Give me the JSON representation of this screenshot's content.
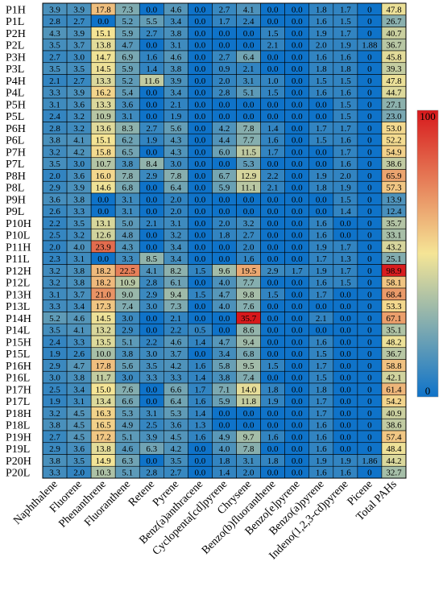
{
  "chart_data": {
    "type": "heatmap",
    "title": "",
    "xlabel": "",
    "ylabel": "",
    "columns": [
      "Naphthalene",
      "Fluorene",
      "Phenanthrene",
      "Fluoranthene",
      "Retene",
      "Pyrene",
      "Benz(a)anthracene",
      "Cyclopenta[cd]pyrene",
      "Chrysene",
      "Benzo(b)fluoranthene",
      "Benzo[e]pyrene",
      "Benzo(a)pyrene",
      "Indeno(1,2,3-cd)pyrene",
      "Picene",
      "Total PAHs"
    ],
    "rows": [
      "P1H",
      "P1L",
      "P2H",
      "P2L",
      "P3H",
      "P3L",
      "P4H",
      "P4L",
      "P5H",
      "P5L",
      "P6H",
      "P6L",
      "P7H",
      "P7L",
      "P8H",
      "P8L",
      "P9H",
      "P9L",
      "P10H",
      "P10L",
      "P11H",
      "P11L",
      "P12H",
      "P12L",
      "P13H",
      "P13L",
      "P14H",
      "P14L",
      "P15H",
      "P15L",
      "P16H",
      "P16L",
      "P17H",
      "P17L",
      "P18H",
      "P18L",
      "P19H",
      "P19L",
      "P20H",
      "P20L"
    ],
    "values": [
      [
        "3.9",
        "3.9",
        "17.8",
        "7.3",
        "0.0",
        "4.6",
        "0.0",
        "2.7",
        "4.1",
        "0.0",
        "0.0",
        "1.8",
        "1.7",
        "0",
        "47.8"
      ],
      [
        "2.8",
        "2.7",
        "0.0",
        "5.2",
        "5.5",
        "3.4",
        "0.0",
        "1.7",
        "2.4",
        "0.0",
        "0.0",
        "1.6",
        "1.5",
        "0",
        "26.7"
      ],
      [
        "4.3",
        "3.9",
        "15.1",
        "5.9",
        "2.7",
        "3.8",
        "0.0",
        "0.0",
        "0.0",
        "1.5",
        "0.0",
        "1.9",
        "1.7",
        "0",
        "40.7"
      ],
      [
        "3.5",
        "3.7",
        "13.8",
        "4.7",
        "0.0",
        "3.1",
        "0.0",
        "0.0",
        "0.0",
        "2.1",
        "0.0",
        "2.0",
        "1.9",
        "1.88",
        "36.7"
      ],
      [
        "2.7",
        "3.0",
        "14.7",
        "6.9",
        "1.6",
        "4.6",
        "0.0",
        "2.7",
        "6.4",
        "0.0",
        "0.0",
        "1.6",
        "1.6",
        "0",
        "45.8"
      ],
      [
        "3.5",
        "3.5",
        "14.5",
        "5.9",
        "1.4",
        "3.8",
        "0.0",
        "0.9",
        "2.1",
        "0.0",
        "0.0",
        "1.8",
        "1.8",
        "0",
        "39.3"
      ],
      [
        "2.1",
        "2.7",
        "13.3",
        "5.2",
        "11.6",
        "3.9",
        "0.0",
        "2.0",
        "3.1",
        "1.0",
        "0.0",
        "1.5",
        "1.5",
        "0",
        "47.8"
      ],
      [
        "3.3",
        "3.9",
        "16.2",
        "5.4",
        "0.0",
        "3.4",
        "0.0",
        "2.8",
        "5.1",
        "1.5",
        "0.0",
        "1.6",
        "1.6",
        "0",
        "44.7"
      ],
      [
        "3.1",
        "3.6",
        "13.3",
        "3.6",
        "0.0",
        "2.1",
        "0.0",
        "0.0",
        "0.0",
        "0.0",
        "0.0",
        "0.0",
        "1.5",
        "0",
        "27.1"
      ],
      [
        "2.4",
        "3.2",
        "10.9",
        "3.1",
        "0.0",
        "1.9",
        "0.0",
        "0.0",
        "0.0",
        "0.0",
        "0.0",
        "0.0",
        "1.5",
        "0",
        "23.0"
      ],
      [
        "2.8",
        "3.2",
        "13.6",
        "8.3",
        "2.7",
        "5.6",
        "0.0",
        "4.2",
        "7.8",
        "1.4",
        "0.0",
        "1.7",
        "1.7",
        "0",
        "53.0"
      ],
      [
        "3.8",
        "4.1",
        "15.1",
        "6.2",
        "1.9",
        "4.3",
        "0.0",
        "4.4",
        "7.7",
        "1.6",
        "0.0",
        "1.5",
        "1.6",
        "0",
        "52.2"
      ],
      [
        "3.2",
        "4.2",
        "15.8",
        "6.5",
        "0.0",
        "4.3",
        "0.0",
        "6.0",
        "11.5",
        "1.7",
        "0.0",
        "0.0",
        "1.7",
        "0",
        "54.9"
      ],
      [
        "3.5",
        "3.0",
        "10.7",
        "3.8",
        "8.4",
        "3.0",
        "0.0",
        "0.0",
        "5.3",
        "0.0",
        "0.0",
        "0.0",
        "1.6",
        "0",
        "38.6"
      ],
      [
        "2.0",
        "3.6",
        "16.0",
        "7.8",
        "2.9",
        "7.8",
        "0.0",
        "6.7",
        "12.9",
        "2.2",
        "0.0",
        "1.9",
        "2.0",
        "0",
        "65.9"
      ],
      [
        "2.9",
        "3.9",
        "14.6",
        "6.8",
        "0.0",
        "6.4",
        "0.0",
        "5.9",
        "11.1",
        "2.1",
        "0.0",
        "1.8",
        "1.9",
        "0",
        "57.3"
      ],
      [
        "3.6",
        "3.8",
        "0.0",
        "3.1",
        "0.0",
        "2.0",
        "0.0",
        "0.0",
        "0.0",
        "0.0",
        "0.0",
        "0.0",
        "1.5",
        "0",
        "13.9"
      ],
      [
        "2.6",
        "3.3",
        "0.0",
        "3.1",
        "0.0",
        "2.0",
        "0.0",
        "0.0",
        "0.0",
        "0.0",
        "0.0",
        "0.0",
        "1.4",
        "0",
        "12.4"
      ],
      [
        "2.2",
        "3.5",
        "13.1",
        "5.0",
        "2.1",
        "3.1",
        "0.0",
        "2.0",
        "3.2",
        "0.0",
        "0.0",
        "1.6",
        "0.0",
        "0",
        "35.7"
      ],
      [
        "2.5",
        "3.2",
        "12.6",
        "4.8",
        "0.0",
        "3.2",
        "0.0",
        "1.8",
        "2.7",
        "0.0",
        "0.0",
        "1.6",
        "0.0",
        "0",
        "33.1"
      ],
      [
        "2.0",
        "4.0",
        "23.9",
        "4.3",
        "0.0",
        "3.4",
        "0.0",
        "0.0",
        "2.0",
        "0.0",
        "0.0",
        "1.9",
        "1.7",
        "0",
        "43.2"
      ],
      [
        "2.3",
        "3.1",
        "0.0",
        "3.3",
        "8.5",
        "3.4",
        "0.0",
        "0.0",
        "1.6",
        "0.0",
        "0.0",
        "1.7",
        "1.3",
        "0",
        "25.1"
      ],
      [
        "3.2",
        "3.8",
        "18.2",
        "22.5",
        "4.1",
        "8.2",
        "1.5",
        "9.6",
        "19.5",
        "2.9",
        "1.7",
        "1.9",
        "1.7",
        "0",
        "98.9"
      ],
      [
        "3.2",
        "3.8",
        "18.2",
        "10.9",
        "2.8",
        "6.1",
        "0.0",
        "4.0",
        "7.7",
        "0.0",
        "0.0",
        "1.6",
        "1.5",
        "0",
        "58.1"
      ],
      [
        "3.1",
        "3.7",
        "21.0",
        "9.0",
        "2.9",
        "9.4",
        "1.5",
        "4.7",
        "9.8",
        "1.5",
        "0.0",
        "1.7",
        "0.0",
        "0",
        "68.4"
      ],
      [
        "3.3",
        "3.4",
        "17.3",
        "7.4",
        "3.0",
        "7.3",
        "0.0",
        "4.0",
        "7.6",
        "0.0",
        "0.0",
        "0.0",
        "0.0",
        "0",
        "53.3"
      ],
      [
        "5.2",
        "4.6",
        "14.5",
        "3.0",
        "0.0",
        "2.1",
        "0.0",
        "0.0",
        "35.7",
        "0.0",
        "0.0",
        "2.1",
        "0.0",
        "0",
        "67.1"
      ],
      [
        "3.5",
        "4.1",
        "13.2",
        "2.9",
        "0.0",
        "2.2",
        "0.5",
        "0.0",
        "8.6",
        "0.0",
        "0.0",
        "0.0",
        "0.0",
        "0",
        "35.1"
      ],
      [
        "2.4",
        "3.3",
        "13.5",
        "5.1",
        "2.2",
        "4.6",
        "1.4",
        "4.7",
        "9.4",
        "0.0",
        "0.0",
        "1.6",
        "0.0",
        "0",
        "48.2"
      ],
      [
        "1.9",
        "2.6",
        "10.0",
        "3.8",
        "3.0",
        "3.7",
        "0.0",
        "3.4",
        "6.8",
        "0.0",
        "0.0",
        "1.5",
        "0.0",
        "0",
        "36.7"
      ],
      [
        "2.9",
        "4.7",
        "17.8",
        "5.6",
        "3.5",
        "4.2",
        "1.6",
        "5.8",
        "9.5",
        "1.5",
        "0.0",
        "1.7",
        "0.0",
        "0",
        "58.8"
      ],
      [
        "3.0",
        "3.8",
        "11.7",
        "3.0",
        "3.3",
        "3.3",
        "1.4",
        "3.8",
        "7.4",
        "0.0",
        "0.0",
        "1.5",
        "0.0",
        "0",
        "42.1"
      ],
      [
        "2.5",
        "3.4",
        "15.0",
        "7.6",
        "0.0",
        "6.6",
        "1.7",
        "7.1",
        "14.0",
        "1.8",
        "0.0",
        "1.8",
        "0.0",
        "0",
        "61.4"
      ],
      [
        "1.9",
        "3.1",
        "13.4",
        "6.6",
        "0.0",
        "6.4",
        "1.6",
        "5.9",
        "11.8",
        "1.9",
        "0.0",
        "1.7",
        "0.0",
        "0",
        "54.2"
      ],
      [
        "3.2",
        "4.5",
        "16.3",
        "5.3",
        "3.1",
        "5.3",
        "1.4",
        "0.0",
        "0.0",
        "0.0",
        "0.0",
        "1.7",
        "0.0",
        "0",
        "40.9"
      ],
      [
        "3.8",
        "4.5",
        "16.5",
        "4.9",
        "2.5",
        "3.6",
        "1.3",
        "0.0",
        "0.0",
        "0.0",
        "0.0",
        "1.6",
        "0.0",
        "0",
        "38.6"
      ],
      [
        "2.7",
        "4.5",
        "17.2",
        "5.1",
        "3.9",
        "4.5",
        "1.6",
        "4.9",
        "9.7",
        "1.6",
        "0.0",
        "1.6",
        "0.0",
        "0",
        "57.4"
      ],
      [
        "2.9",
        "3.6",
        "13.8",
        "4.6",
        "6.3",
        "4.2",
        "0.0",
        "4.0",
        "7.8",
        "0.0",
        "0.0",
        "1.6",
        "0.0",
        "0",
        "48.4"
      ],
      [
        "3.8",
        "3.5",
        "14.9",
        "6.3",
        "0.0",
        "3.5",
        "0.0",
        "1.8",
        "3.1",
        "1.8",
        "0.0",
        "1.9",
        "1.9",
        "1.86",
        "44.2"
      ],
      [
        "3.3",
        "2.0",
        "10.3",
        "5.1",
        "2.8",
        "2.7",
        "0.0",
        "1.4",
        "2.0",
        "0.0",
        "0.0",
        "1.6",
        "1.6",
        "0",
        "32.7"
      ]
    ],
    "color_scale": {
      "min": 0,
      "max": 100,
      "min_label": "0",
      "max_label": "100",
      "colors": [
        "#0f73c9",
        "#f5e596",
        "#d7191c"
      ],
      "total_column_max": 100,
      "other_columns_max": 30
    },
    "grid": true,
    "legend": "right"
  }
}
